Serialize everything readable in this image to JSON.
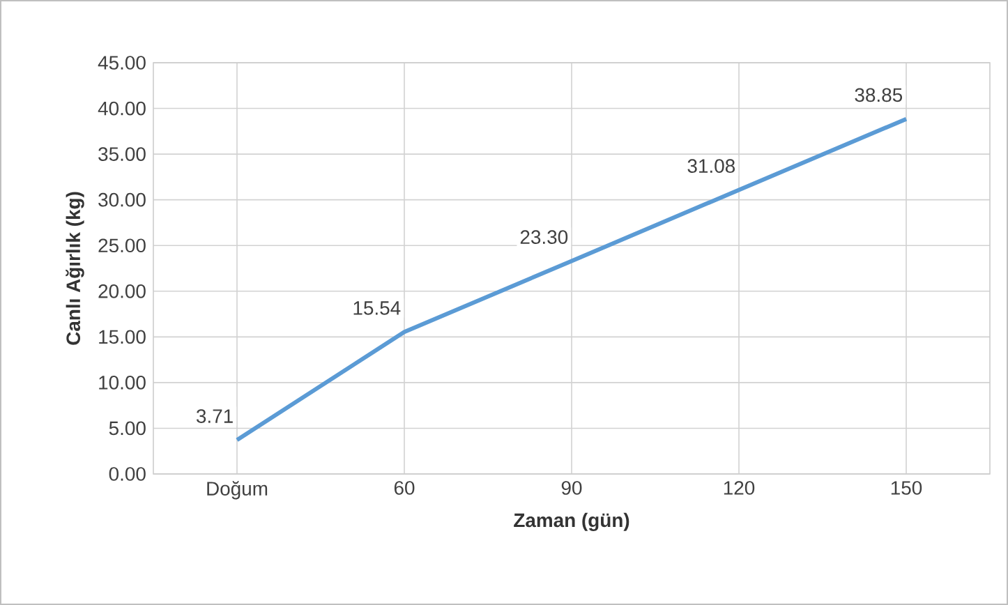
{
  "chart_data": {
    "type": "line",
    "xlabel": "Zaman (gün)",
    "ylabel": "Canlı Ağırlık (kg)",
    "categories": [
      "Doğum",
      "60",
      "90",
      "120",
      "150"
    ],
    "values": [
      3.71,
      15.54,
      23.3,
      31.08,
      38.85
    ],
    "value_labels": [
      "3.71",
      "15.54",
      "23.30",
      "31.08",
      "38.85"
    ],
    "color": "#5b9bd5",
    "ylim": [
      0,
      45
    ],
    "yticks": [
      {
        "value": 0,
        "label": "0.00"
      },
      {
        "value": 5,
        "label": "5.00"
      },
      {
        "value": 10,
        "label": "10.00"
      },
      {
        "value": 15,
        "label": "15.00"
      },
      {
        "value": 20,
        "label": "20.00"
      },
      {
        "value": 25,
        "label": "25.00"
      },
      {
        "value": 30,
        "label": "30.00"
      },
      {
        "value": 35,
        "label": "35.00"
      },
      {
        "value": 40,
        "label": "40.00"
      },
      {
        "value": 45,
        "label": "45.00"
      }
    ],
    "grid": true,
    "marker": "none",
    "line_style": "solid"
  }
}
